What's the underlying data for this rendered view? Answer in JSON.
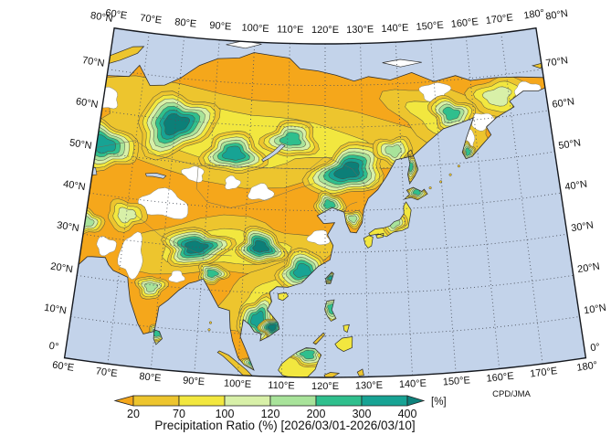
{
  "title": "Precipitation Ratio (%) [2026/03/01-2026/03/10]",
  "attribution": "CPD/JMA",
  "colorbar": {
    "unit_label": "[%]",
    "tick_labels": [
      "20",
      "70",
      "100",
      "120",
      "200",
      "300",
      "400"
    ],
    "segment_colors": [
      "#EDC52E",
      "#F2E73F",
      "#D8F0A8",
      "#A8E39A",
      "#2FBF8D",
      "#17A394"
    ],
    "below_min_color": "#F5A71B",
    "above_max_color": "#0E827C"
  },
  "map": {
    "longitude_labels": [
      "60°E",
      "70°E",
      "80°E",
      "90°E",
      "100°E",
      "110°E",
      "120°E",
      "130°E",
      "140°E",
      "150°E",
      "160°E",
      "170°E",
      "180°"
    ],
    "latitude_labels": [
      "80°N",
      "70°N",
      "60°N",
      "50°N",
      "40°N",
      "30°N",
      "20°N",
      "10°N",
      "0°"
    ],
    "colors": {
      "ocean": "#C3D3EA",
      "land_dry": "#F5A71B",
      "gold": "#EDC52E",
      "yellow": "#F2E73F",
      "pale_green": "#D8F0A8",
      "light_green": "#A8E39A",
      "green": "#2FBF8D",
      "teal": "#17A394",
      "dark_teal": "#0C7F78",
      "no_data": "#FFFFFF",
      "grid_line": "#4F5560",
      "coastline": "#2E2E2E",
      "border_line": "#15181E"
    }
  }
}
